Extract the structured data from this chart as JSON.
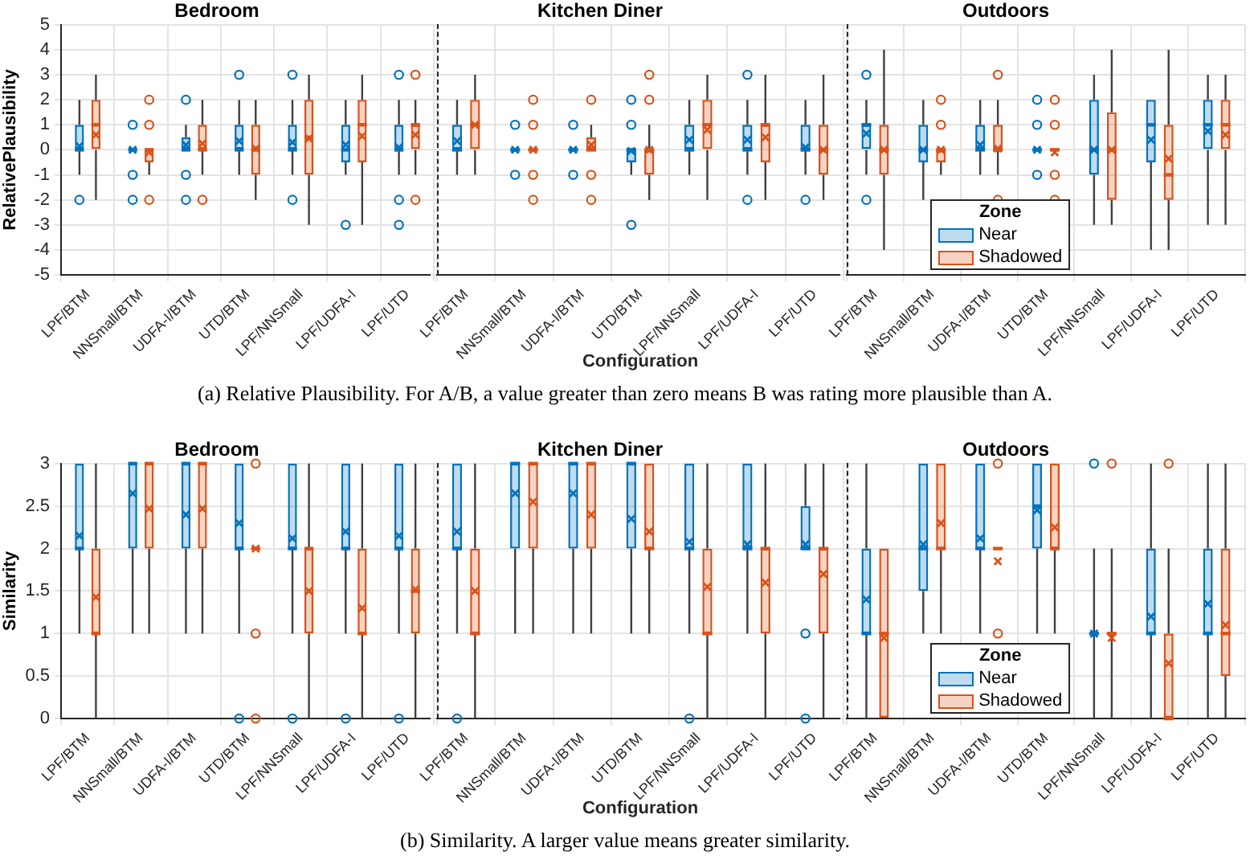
{
  "chart_data": [
    {
      "type": "box",
      "title": "Bedroom",
      "ylabel": "RelativePlausibility",
      "categories": [
        "LPF/BTM",
        "NNSmall/BTM",
        "UDFA-I/BTM",
        "UTD/BTM",
        "LPF/NNSmall",
        "LPF/UDFA-I",
        "LPF/UTD"
      ],
      "ylim": [
        -5,
        5
      ],
      "yticks": [
        -5,
        -4,
        -3,
        -2,
        -1,
        0,
        1,
        2,
        3,
        4,
        5
      ],
      "grid": true,
      "series": [
        {
          "color": "#0072bd",
          "boxes": [
            {
              "low": -1,
              "q1": 0,
              "median": 0,
              "q3": 1,
              "high": 2,
              "mean": 0.15,
              "outliers": [
                -2
              ]
            },
            {
              "low": 0,
              "q1": 0,
              "median": 0,
              "q3": 0,
              "high": 0,
              "mean": 0,
              "outliers": [
                1,
                -1,
                -2
              ]
            },
            {
              "low": 0,
              "q1": 0,
              "median": 0,
              "q3": 0.5,
              "high": 1,
              "mean": 0.2,
              "outliers": [
                2,
                -1,
                -2
              ]
            },
            {
              "low": -1,
              "q1": 0,
              "median": 0,
              "q3": 1,
              "high": 2,
              "mean": 0.35,
              "outliers": [
                3
              ]
            },
            {
              "low": -1,
              "q1": 0,
              "median": 0,
              "q3": 1,
              "high": 2,
              "mean": 0.3,
              "outliers": [
                3,
                -2
              ]
            },
            {
              "low": -1,
              "q1": -0.5,
              "median": 0,
              "q3": 1,
              "high": 2,
              "mean": 0.2,
              "outliers": [
                -3
              ]
            },
            {
              "low": -1,
              "q1": 0,
              "median": 0,
              "q3": 1,
              "high": 2,
              "mean": 0.1,
              "outliers": [
                3,
                -2,
                -3
              ]
            }
          ]
        },
        {
          "color": "#d95319",
          "boxes": [
            {
              "low": -2,
              "q1": 0,
              "median": 1,
              "q3": 2,
              "high": 3,
              "mean": 0.6
            },
            {
              "low": -1,
              "q1": -0.5,
              "median": 0,
              "q3": 0,
              "high": 0,
              "mean": -0.1,
              "outliers": [
                2,
                1,
                -2
              ]
            },
            {
              "low": -1,
              "q1": 0,
              "median": 0,
              "q3": 1,
              "high": 2,
              "mean": 0.25,
              "outliers": [
                -2
              ]
            },
            {
              "low": -2,
              "q1": -1,
              "median": 0,
              "q3": 1,
              "high": 2,
              "mean": 0.05
            },
            {
              "low": -3,
              "q1": -1,
              "median": 0.5,
              "q3": 2,
              "high": 3,
              "mean": 0.45
            },
            {
              "low": -3,
              "q1": -0.5,
              "median": 1,
              "q3": 2,
              "high": 3,
              "mean": 0.55
            },
            {
              "low": -1,
              "q1": 0,
              "median": 1,
              "q3": 1,
              "high": 2,
              "mean": 0.6,
              "outliers": [
                3,
                -2
              ]
            }
          ]
        }
      ]
    },
    {
      "type": "box",
      "title": "Kitchen Diner",
      "xlabel": "Configuration",
      "annotations": [
        "(a) Relative Plausibility. For A/B, a value greater than zero means B was rating more plausible than A."
      ],
      "categories": [
        "LPF/BTM",
        "NNSmall/BTM",
        "UDFA-I/BTM",
        "UTD/BTM",
        "LPF/NNSmall",
        "LPF/UDFA-I",
        "LPF/UTD"
      ],
      "ylim": [
        -5,
        5
      ],
      "yticks": [
        -5,
        -4,
        -3,
        -2,
        -1,
        0,
        1,
        2,
        3,
        4,
        5
      ],
      "grid": true,
      "tick_labels": "x",
      "series": [
        {
          "color": "#0072bd",
          "boxes": [
            {
              "low": -1,
              "q1": 0,
              "median": 0,
              "q3": 1,
              "high": 2,
              "mean": 0.35
            },
            {
              "low": 0,
              "q1": 0,
              "median": 0,
              "q3": 0,
              "high": 0,
              "mean": 0,
              "outliers": [
                1,
                -1
              ]
            },
            {
              "low": 0,
              "q1": 0,
              "median": 0,
              "q3": 0,
              "high": 0,
              "mean": 0,
              "outliers": [
                1,
                -1
              ]
            },
            {
              "low": -1,
              "q1": -0.5,
              "median": 0,
              "q3": 0,
              "high": 0,
              "mean": -0.05,
              "outliers": [
                2,
                1,
                -3
              ]
            },
            {
              "low": -1,
              "q1": 0,
              "median": 0,
              "q3": 1,
              "high": 2,
              "mean": 0.4
            },
            {
              "low": -1,
              "q1": 0,
              "median": 0,
              "q3": 1,
              "high": 2,
              "mean": 0.4,
              "outliers": [
                3,
                -2
              ]
            },
            {
              "low": -1,
              "q1": 0,
              "median": 0,
              "q3": 1,
              "high": 2,
              "mean": 0.1,
              "outliers": [
                -2
              ]
            }
          ]
        },
        {
          "color": "#d95319",
          "boxes": [
            {
              "low": -1,
              "q1": 0,
              "median": 1,
              "q3": 2,
              "high": 3,
              "mean": 1
            },
            {
              "low": 0,
              "q1": 0,
              "median": 0,
              "q3": 0,
              "high": 0,
              "mean": 0,
              "outliers": [
                2,
                1,
                -1,
                -2
              ]
            },
            {
              "low": 0,
              "q1": 0,
              "median": 0,
              "q3": 0.5,
              "high": 1,
              "mean": 0.2,
              "outliers": [
                2,
                -1,
                -2
              ]
            },
            {
              "low": -2,
              "q1": -1,
              "median": 0,
              "q3": 0,
              "high": 1,
              "mean": 0,
              "outliers": [
                3,
                2
              ]
            },
            {
              "low": -2,
              "q1": 0,
              "median": 1,
              "q3": 2,
              "high": 3,
              "mean": 0.8
            },
            {
              "low": -2,
              "q1": -0.5,
              "median": 1,
              "q3": 1,
              "high": 3,
              "mean": 0.5
            },
            {
              "low": -2,
              "q1": -1,
              "median": 0,
              "q3": 1,
              "high": 3,
              "mean": 0
            }
          ]
        }
      ]
    },
    {
      "type": "box",
      "title": "Outdoors",
      "legend": "bottom left",
      "legend_title": "Zone",
      "categories": [
        "LPF/BTM",
        "NNSmall/BTM",
        "UDFA-I/BTM",
        "UTD/BTM",
        "LPF/NNSmall",
        "LPF/UDFA-I",
        "LPF/UTD"
      ],
      "ylim": [
        -5,
        5
      ],
      "yticks": [
        -5,
        -4,
        -3,
        -2,
        -1,
        0,
        1,
        2,
        3,
        4,
        5
      ],
      "grid": true,
      "tick_labels": "x",
      "series": [
        {
          "name": "Near",
          "color": "#0072bd",
          "boxes": [
            {
              "low": -1,
              "q1": 0,
              "median": 1,
              "q3": 1,
              "high": 2,
              "mean": 0.65,
              "outliers": [
                3,
                -2
              ]
            },
            {
              "low": -2,
              "q1": -0.5,
              "median": 0,
              "q3": 1,
              "high": 2,
              "mean": 0
            },
            {
              "low": -1,
              "q1": 0,
              "median": 0,
              "q3": 1,
              "high": 2,
              "mean": 0.2
            },
            {
              "low": 0,
              "q1": 0,
              "median": 0,
              "q3": 0,
              "high": 0,
              "mean": 0,
              "outliers": [
                2,
                1,
                -1
              ]
            },
            {
              "low": -3,
              "q1": -1,
              "median": 0,
              "q3": 2,
              "high": 3,
              "mean": 0
            },
            {
              "low": -4,
              "q1": -0.5,
              "median": 1,
              "q3": 2,
              "high": 2,
              "mean": 0.4
            },
            {
              "low": -3,
              "q1": 0,
              "median": 1,
              "q3": 2,
              "high": 3,
              "mean": 0.75
            }
          ]
        },
        {
          "name": "Shadowed",
          "color": "#d95319",
          "boxes": [
            {
              "low": -4,
              "q1": -1,
              "median": 0,
              "q3": 1,
              "high": 4,
              "mean": 0
            },
            {
              "low": -1,
              "q1": -0.5,
              "median": 0,
              "q3": 0,
              "high": 0,
              "mean": 0,
              "outliers": [
                2,
                1
              ]
            },
            {
              "low": -1,
              "q1": 0,
              "median": 0,
              "q3": 1,
              "high": 2,
              "mean": 0.05,
              "outliers": [
                3,
                -2
              ]
            },
            {
              "low": 0,
              "q1": 0,
              "median": 0,
              "q3": 0,
              "high": 0,
              "mean": -0.1,
              "outliers": [
                2,
                1,
                -1,
                -2
              ]
            },
            {
              "low": -3,
              "q1": -2,
              "median": 0,
              "q3": 1.5,
              "high": 4,
              "mean": 0
            },
            {
              "low": -4,
              "q1": -2,
              "median": -1,
              "q3": 1,
              "high": 4,
              "mean": -0.35
            },
            {
              "low": -3,
              "q1": 0,
              "median": 1,
              "q3": 2,
              "high": 3,
              "mean": 0.6
            }
          ]
        }
      ]
    },
    {
      "type": "box",
      "title": "Bedroom",
      "ylabel": "Similarity",
      "categories": [
        "LPF/BTM",
        "NNSmall/BTM",
        "UDFA-I/BTM",
        "UTD/BTM",
        "LPF/NNSmall",
        "LPF/UDFA-I",
        "LPF/UTD"
      ],
      "ylim": [
        0,
        3
      ],
      "yticks": [
        0,
        0.5,
        1,
        1.5,
        2,
        2.5,
        3
      ],
      "grid": true,
      "series": [
        {
          "color": "#0072bd",
          "boxes": [
            {
              "low": 1,
              "q1": 2,
              "median": 2,
              "q3": 3,
              "high": 3,
              "mean": 2.15
            },
            {
              "low": 1,
              "q1": 2,
              "median": 3,
              "q3": 3,
              "high": 3,
              "mean": 2.65
            },
            {
              "low": 1,
              "q1": 2,
              "median": 3,
              "q3": 3,
              "high": 3,
              "mean": 2.4
            },
            {
              "low": 1,
              "q1": 2,
              "median": 2,
              "q3": 3,
              "high": 3,
              "mean": 2.3,
              "outliers": [
                0
              ]
            },
            {
              "low": 1,
              "q1": 2,
              "median": 2,
              "q3": 3,
              "high": 3,
              "mean": 2.12,
              "outliers": [
                0
              ]
            },
            {
              "low": 1,
              "q1": 2,
              "median": 2,
              "q3": 3,
              "high": 3,
              "mean": 2.2,
              "outliers": [
                0
              ]
            },
            {
              "low": 1,
              "q1": 2,
              "median": 2,
              "q3": 3,
              "high": 3,
              "mean": 2.15,
              "outliers": [
                0
              ]
            }
          ]
        },
        {
          "color": "#d95319",
          "boxes": [
            {
              "low": 0,
              "q1": 1,
              "median": 1,
              "q3": 2,
              "high": 3,
              "mean": 1.43
            },
            {
              "low": 1,
              "q1": 2,
              "median": 3,
              "q3": 3,
              "high": 3,
              "mean": 2.47
            },
            {
              "low": 1,
              "q1": 2,
              "median": 3,
              "q3": 3,
              "high": 3,
              "mean": 2.47
            },
            {
              "low": 2,
              "q1": 2,
              "median": 2,
              "q3": 2,
              "high": 2,
              "mean": 2,
              "outliers": [
                3,
                1,
                0
              ]
            },
            {
              "low": 0,
              "q1": 1,
              "median": 2,
              "q3": 2,
              "high": 3,
              "mean": 1.5
            },
            {
              "low": 0,
              "q1": 1,
              "median": 1,
              "q3": 2,
              "high": 3,
              "mean": 1.3
            },
            {
              "low": 0,
              "q1": 1,
              "median": 1.5,
              "q3": 2,
              "high": 3,
              "mean": 1.52
            }
          ]
        }
      ]
    },
    {
      "type": "box",
      "title": "Kitchen Diner",
      "xlabel": "Configuration",
      "annotations": [
        "(b) Similarity. A larger value means greater similarity."
      ],
      "categories": [
        "LPF/BTM",
        "NNSmall/BTM",
        "UDFA-I/BTM",
        "UTD/BTM",
        "LPF/NNSmall",
        "LPF/UDFA-I",
        "LPF/UTD"
      ],
      "ylim": [
        0,
        3
      ],
      "yticks": [
        0,
        0.5,
        1,
        1.5,
        2,
        2.5,
        3
      ],
      "grid": true,
      "tick_labels": "x",
      "series": [
        {
          "color": "#0072bd",
          "boxes": [
            {
              "low": 1,
              "q1": 2,
              "median": 2,
              "q3": 3,
              "high": 3,
              "mean": 2.2,
              "outliers": [
                0
              ]
            },
            {
              "low": 1,
              "q1": 2,
              "median": 3,
              "q3": 3,
              "high": 3,
              "mean": 2.65
            },
            {
              "low": 1,
              "q1": 2,
              "median": 3,
              "q3": 3,
              "high": 3,
              "mean": 2.65
            },
            {
              "low": 1,
              "q1": 2,
              "median": 3,
              "q3": 3,
              "high": 3,
              "mean": 2.35
            },
            {
              "low": 1,
              "q1": 2,
              "median": 2,
              "q3": 3,
              "high": 3,
              "mean": 2.08,
              "outliers": [
                0
              ]
            },
            {
              "low": 1,
              "q1": 2,
              "median": 2,
              "q3": 3,
              "high": 3,
              "mean": 2.05
            },
            {
              "low": 2,
              "q1": 2,
              "median": 2,
              "q3": 2.5,
              "high": 3,
              "mean": 2.05,
              "outliers": [
                1,
                0
              ]
            }
          ]
        },
        {
          "color": "#d95319",
          "boxes": [
            {
              "low": 0,
              "q1": 1,
              "median": 1,
              "q3": 2,
              "high": 3,
              "mean": 1.5
            },
            {
              "low": 1,
              "q1": 2,
              "median": 3,
              "q3": 3,
              "high": 3,
              "mean": 2.55
            },
            {
              "low": 1,
              "q1": 2,
              "median": 3,
              "q3": 3,
              "high": 3,
              "mean": 2.4
            },
            {
              "low": 1,
              "q1": 2,
              "median": 2,
              "q3": 3,
              "high": 3,
              "mean": 2.2
            },
            {
              "low": 0,
              "q1": 1,
              "median": 1,
              "q3": 2,
              "high": 3,
              "mean": 1.55
            },
            {
              "low": 0,
              "q1": 1,
              "median": 2,
              "q3": 2,
              "high": 3,
              "mean": 1.6
            },
            {
              "low": 0,
              "q1": 1,
              "median": 2,
              "q3": 2,
              "high": 3,
              "mean": 1.7
            }
          ]
        }
      ]
    },
    {
      "type": "box",
      "title": "Outdoors",
      "legend": "bottom left",
      "legend_title": "Zone",
      "categories": [
        "LPF/BTM",
        "NNSmall/BTM",
        "UDFA-I/BTM",
        "UTD/BTM",
        "LPF/NNSmall",
        "LPF/UDFA-I",
        "LPF/UTD"
      ],
      "ylim": [
        0,
        3
      ],
      "yticks": [
        0,
        0.5,
        1,
        1.5,
        2,
        2.5,
        3
      ],
      "grid": true,
      "tick_labels": "x",
      "series": [
        {
          "name": "Near",
          "color": "#0072bd",
          "boxes": [
            {
              "low": 0,
              "q1": 1,
              "median": 1,
              "q3": 2,
              "high": 3,
              "mean": 1.4
            },
            {
              "low": 1,
              "q1": 1.5,
              "median": 2,
              "q3": 3,
              "high": 3,
              "mean": 2.05
            },
            {
              "low": 1,
              "q1": 2,
              "median": 2,
              "q3": 3,
              "high": 3,
              "mean": 2.12
            },
            {
              "low": 1,
              "q1": 2,
              "median": 2.5,
              "q3": 3,
              "high": 3,
              "mean": 2.45
            },
            {
              "low": 0,
              "q1": 1,
              "median": 1,
              "q3": 1,
              "high": 2,
              "mean": 1,
              "outliers": [
                3
              ]
            },
            {
              "low": 0,
              "q1": 1,
              "median": 1,
              "q3": 2,
              "high": 3,
              "mean": 1.2
            },
            {
              "low": 0,
              "q1": 1,
              "median": 1,
              "q3": 2,
              "high": 3,
              "mean": 1.35
            }
          ]
        },
        {
          "name": "Shadowed",
          "color": "#d95319",
          "boxes": [
            {
              "low": 0,
              "q1": 0,
              "median": 1,
              "q3": 2,
              "high": 2,
              "mean": 0.95
            },
            {
              "low": 1,
              "q1": 2,
              "median": 2,
              "q3": 3,
              "high": 3,
              "mean": 2.3
            },
            {
              "low": 2,
              "q1": 2,
              "median": 2,
              "q3": 2,
              "high": 2,
              "mean": 1.85,
              "outliers": [
                3,
                1
              ]
            },
            {
              "low": 1,
              "q1": 2,
              "median": 2,
              "q3": 3,
              "high": 3,
              "mean": 2.25
            },
            {
              "low": 0,
              "q1": 1,
              "median": 1,
              "q3": 1,
              "high": 2,
              "mean": 0.95,
              "outliers": [
                3
              ]
            },
            {
              "low": 0,
              "q1": 0,
              "median": 0,
              "q3": 1,
              "high": 2,
              "mean": 0.65,
              "outliers": [
                3
              ]
            },
            {
              "low": 0,
              "q1": 0.5,
              "median": 1,
              "q3": 2,
              "high": 3,
              "mean": 1.1
            }
          ]
        }
      ]
    }
  ]
}
